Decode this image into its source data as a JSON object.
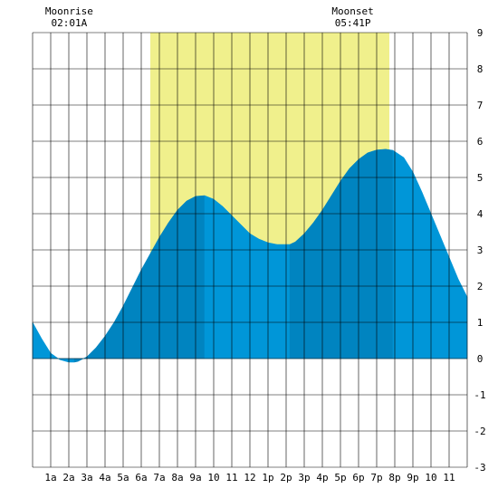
{
  "chart_data": {
    "type": "area",
    "title": "",
    "xlabel": "",
    "ylabel": "",
    "xlim": [
      0,
      24
    ],
    "ylim": [
      -3,
      9
    ],
    "x_ticks": [
      {
        "x": 1,
        "label": "1a"
      },
      {
        "x": 2,
        "label": "2a"
      },
      {
        "x": 3,
        "label": "3a"
      },
      {
        "x": 4,
        "label": "4a"
      },
      {
        "x": 5,
        "label": "5a"
      },
      {
        "x": 6,
        "label": "6a"
      },
      {
        "x": 7,
        "label": "7a"
      },
      {
        "x": 8,
        "label": "8a"
      },
      {
        "x": 9,
        "label": "9a"
      },
      {
        "x": 10,
        "label": "10"
      },
      {
        "x": 11,
        "label": "11"
      },
      {
        "x": 12,
        "label": "12"
      },
      {
        "x": 13,
        "label": "1p"
      },
      {
        "x": 14,
        "label": "2p"
      },
      {
        "x": 15,
        "label": "3p"
      },
      {
        "x": 16,
        "label": "4p"
      },
      {
        "x": 17,
        "label": "5p"
      },
      {
        "x": 18,
        "label": "6p"
      },
      {
        "x": 19,
        "label": "7p"
      },
      {
        "x": 20,
        "label": "8p"
      },
      {
        "x": 21,
        "label": "9p"
      },
      {
        "x": 22,
        "label": "10"
      },
      {
        "x": 23,
        "label": "11"
      }
    ],
    "y_ticks": [
      -3,
      -2,
      -1,
      0,
      1,
      2,
      3,
      4,
      5,
      6,
      7,
      8,
      9
    ],
    "grid": true,
    "daylight": {
      "start": 6.5,
      "end": 19.7
    },
    "segments": [
      {
        "start": 0,
        "end": 2.3,
        "color": "#0096d8"
      },
      {
        "start": 2.3,
        "end": 9.5,
        "color": "#0084c0"
      },
      {
        "start": 9.5,
        "end": 14.2,
        "color": "#0096d8"
      },
      {
        "start": 14.2,
        "end": 19.9,
        "color": "#0084c0"
      },
      {
        "start": 19.9,
        "end": 24,
        "color": "#0096d8"
      }
    ],
    "series": [
      {
        "x": [
          0,
          0.5,
          1,
          1.5,
          2,
          2.3,
          2.5,
          3,
          3.5,
          4,
          4.5,
          5,
          5.5,
          6,
          6.5,
          7,
          7.5,
          8,
          8.5,
          9,
          9.5,
          10,
          10.5,
          11,
          11.5,
          12,
          12.5,
          13,
          13.5,
          14,
          14.2,
          14.5,
          15,
          15.5,
          16,
          16.5,
          17,
          17.5,
          18,
          18.5,
          19,
          19.5,
          19.9,
          20.5,
          21,
          21.5,
          22,
          22.5,
          23,
          23.5,
          24
        ],
        "y": [
          1.0,
          0.55,
          0.15,
          -0.03,
          -0.1,
          -0.1,
          -0.08,
          0.05,
          0.3,
          0.62,
          1.0,
          1.45,
          1.95,
          2.45,
          2.9,
          3.35,
          3.75,
          4.1,
          4.35,
          4.48,
          4.5,
          4.4,
          4.2,
          3.95,
          3.7,
          3.45,
          3.3,
          3.2,
          3.15,
          3.15,
          3.15,
          3.22,
          3.45,
          3.75,
          4.1,
          4.5,
          4.9,
          5.25,
          5.5,
          5.68,
          5.76,
          5.78,
          5.75,
          5.55,
          5.15,
          4.6,
          4.0,
          3.4,
          2.8,
          2.2,
          1.7
        ]
      }
    ],
    "colors": {
      "daylight": "#f0f08c",
      "grid": "#000000",
      "light": "#0096d8",
      "dark": "#0084c0"
    }
  },
  "annotations": [
    {
      "label": "Moonrise",
      "time": "02:01A",
      "x": 2.02
    },
    {
      "label": "Moonset",
      "time": "05:41P",
      "x": 17.68
    }
  ]
}
